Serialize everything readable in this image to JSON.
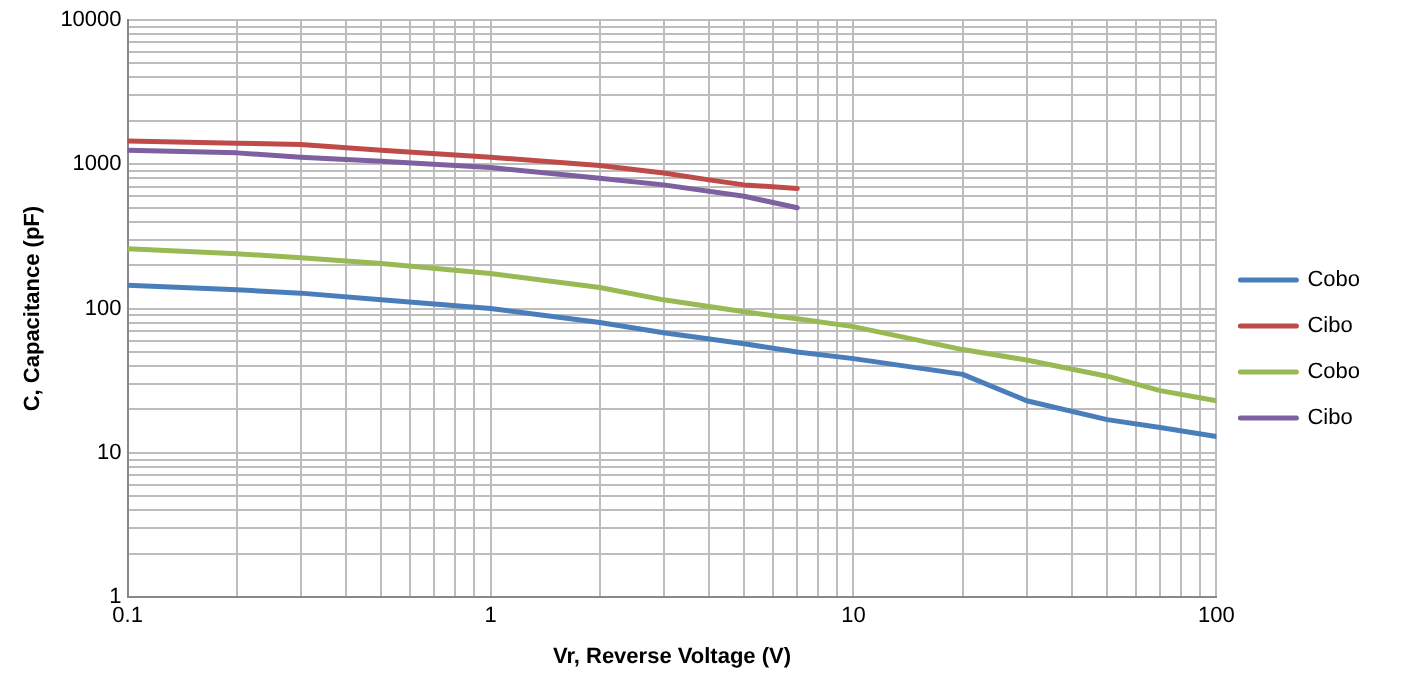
{
  "chart_data": {
    "type": "line",
    "xlabel": "Vr, Reverse Voltage (V)",
    "ylabel": "C, Capacitance (pF)",
    "log": "xy",
    "grid": true,
    "legend": "right",
    "marker": "none",
    "line_style": "solid",
    "xlim": [
      0.1,
      100
    ],
    "xticks": [
      0.1,
      1,
      10,
      100
    ],
    "ylim": [
      1,
      10000
    ],
    "yticks": [
      1,
      10,
      100,
      1000,
      10000
    ],
    "series": [
      {
        "name": "Cobo",
        "color": "#4a7ebb",
        "x": [
          0.1,
          0.2,
          0.3,
          0.5,
          1,
          2,
          3,
          5,
          7,
          10,
          20,
          30,
          50,
          70,
          100
        ],
        "values": [
          145,
          135,
          128,
          115,
          100,
          80,
          68,
          57,
          50,
          45,
          35,
          23,
          17,
          15,
          13
        ]
      },
      {
        "name": "Cibo",
        "color": "#be4b48",
        "x": [
          0.1,
          0.2,
          0.3,
          0.5,
          1,
          2,
          3,
          4,
          5,
          7
        ],
        "values": [
          1450,
          1400,
          1370,
          1250,
          1120,
          980,
          870,
          780,
          720,
          680
        ]
      },
      {
        "name": "Cobo",
        "color": "#98b954",
        "x": [
          0.1,
          0.2,
          0.3,
          0.5,
          1,
          2,
          3,
          5,
          7,
          10,
          20,
          30,
          50,
          70,
          100
        ],
        "values": [
          260,
          240,
          225,
          205,
          175,
          140,
          115,
          95,
          85,
          75,
          52,
          44,
          34,
          27,
          23
        ]
      },
      {
        "name": "Cibo",
        "color": "#7d60a0",
        "x": [
          0.1,
          0.2,
          0.3,
          0.5,
          1,
          2,
          3,
          5,
          7
        ],
        "values": [
          1250,
          1200,
          1120,
          1050,
          950,
          800,
          720,
          600,
          500
        ]
      }
    ]
  }
}
